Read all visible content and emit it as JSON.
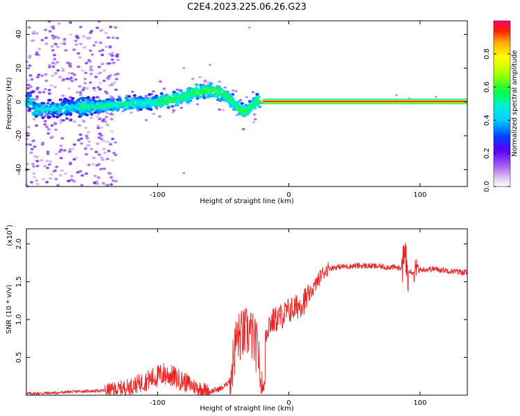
{
  "title": "C2E4.2023.225.06.26.G23",
  "colors": {
    "snr_line": "#ee2222",
    "axis": "#000000"
  },
  "chart_data": [
    {
      "type": "heatmap",
      "name": "spectrogram",
      "xlabel": "Height of straight line (km)",
      "ylabel": "Frequency (Hz)",
      "xlim": [
        -200,
        136
      ],
      "ylim": [
        -50,
        48
      ],
      "x_ticks": [
        -100,
        0,
        100
      ],
      "x_tick_labels": [
        "-100",
        "0",
        "100"
      ],
      "y_ticks": [
        -40,
        -20,
        0,
        20,
        40
      ],
      "y_tick_labels": [
        "-40",
        "-20",
        "0",
        "20",
        "40"
      ],
      "peak_frequency": {
        "x": [
          -195,
          -180,
          -160,
          -140,
          -120,
          -100,
          -80,
          -70,
          -60,
          -50,
          -40,
          -35,
          -30,
          -25,
          -20,
          0,
          20,
          60,
          100,
          136
        ],
        "y": [
          -5,
          -4,
          -3,
          -2,
          -1,
          0,
          3,
          6,
          7,
          5,
          -2,
          -6,
          -4,
          0,
          1,
          0.5,
          0.3,
          0.2,
          0.2,
          0.2
        ]
      },
      "colorbar": {
        "label": "Normalized spectral amplitude",
        "range": [
          0,
          1
        ],
        "ticks": [
          0.0,
          0.2,
          0.4,
          0.6,
          0.8
        ],
        "tick_labels": [
          "0.0",
          "0.2",
          "0.4",
          "0.6",
          "0.8"
        ]
      }
    },
    {
      "type": "line",
      "name": "snr",
      "xlabel": "Height of straight line (km)",
      "ylabel": "SNR (10 * v/v)",
      "y_multiplier_base": "(x10",
      "y_multiplier_exp": "4",
      "y_multiplier_close": ")",
      "xlim": [
        -200,
        136
      ],
      "ylim": [
        0,
        2.2
      ],
      "x_ticks": [
        -100,
        0,
        100
      ],
      "x_tick_labels": [
        "-100",
        "0",
        "100"
      ],
      "y_ticks": [
        0.5,
        1.0,
        1.5,
        2.0
      ],
      "y_tick_labels": [
        "0.5",
        "1.0",
        "1.5",
        "2.0"
      ],
      "series": [
        {
          "name": "SNR",
          "x": [
            -200,
            -180,
            -160,
            -140,
            -130,
            -120,
            -110,
            -100,
            -95,
            -90,
            -80,
            -70,
            -60,
            -55,
            -50,
            -45,
            -42,
            -40,
            -35,
            -30,
            -25,
            -22,
            -20,
            -15,
            -10,
            -5,
            0,
            5,
            10,
            15,
            20,
            25,
            30,
            40,
            50,
            60,
            70,
            80,
            85,
            88,
            90,
            92,
            95,
            100,
            110,
            120,
            130,
            136
          ],
          "y": [
            0.02,
            0.03,
            0.05,
            0.06,
            0.08,
            0.12,
            0.18,
            0.25,
            0.28,
            0.26,
            0.18,
            0.1,
            0.05,
            0.07,
            0.1,
            0.2,
            0.5,
            0.75,
            0.8,
            0.85,
            0.65,
            0.5,
            0.7,
            0.95,
            1.0,
            1.05,
            1.12,
            1.15,
            1.22,
            1.3,
            1.45,
            1.6,
            1.68,
            1.7,
            1.71,
            1.71,
            1.7,
            1.69,
            1.68,
            1.8,
            1.65,
            1.65,
            1.62,
            1.66,
            1.67,
            1.65,
            1.63,
            1.62
          ]
        }
      ]
    }
  ]
}
